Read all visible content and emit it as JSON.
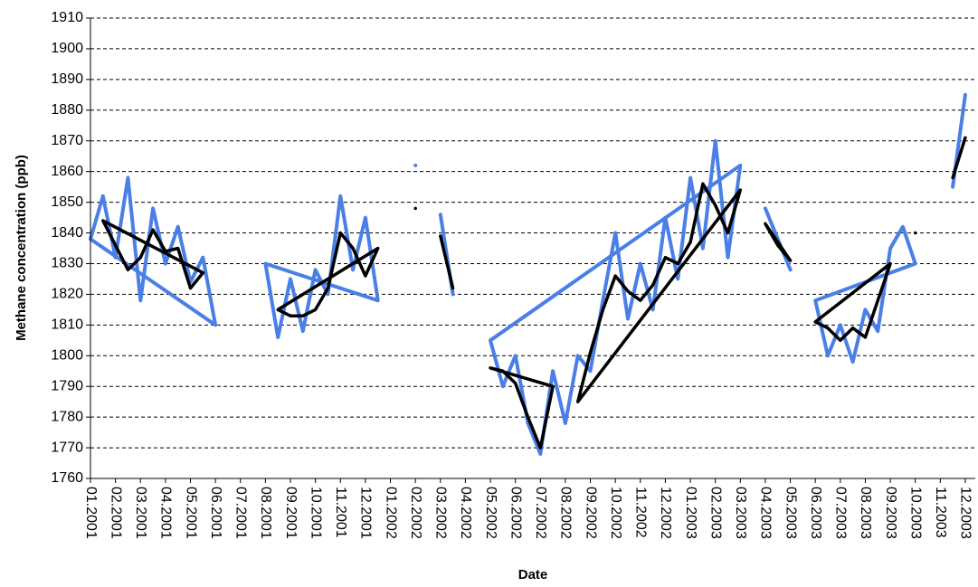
{
  "chart_data": {
    "type": "line",
    "xlabel": "Date",
    "ylabel": "Methane concentration (ppb)",
    "xlim": [
      0,
      35.4
    ],
    "ylim": [
      1760,
      1910
    ],
    "xticks": [
      {
        "value": 0,
        "label": "01.2001"
      },
      {
        "value": 1,
        "label": "02.2001"
      },
      {
        "value": 2,
        "label": "03.2001"
      },
      {
        "value": 3,
        "label": "04.2001"
      },
      {
        "value": 4,
        "label": "05.2001"
      },
      {
        "value": 5,
        "label": "06.2001"
      },
      {
        "value": 6,
        "label": "07.2001"
      },
      {
        "value": 7,
        "label": "08.2001"
      },
      {
        "value": 8,
        "label": "09.2001"
      },
      {
        "value": 9,
        "label": "10.2001"
      },
      {
        "value": 10,
        "label": "11.2001"
      },
      {
        "value": 11,
        "label": "12.2001"
      },
      {
        "value": 12,
        "label": "01.2002"
      },
      {
        "value": 13,
        "label": "02.2002"
      },
      {
        "value": 14,
        "label": "03.2002"
      },
      {
        "value": 15,
        "label": "04.2002"
      },
      {
        "value": 16,
        "label": "05.2002"
      },
      {
        "value": 17,
        "label": "06.2002"
      },
      {
        "value": 18,
        "label": "07.2002"
      },
      {
        "value": 19,
        "label": "08.2002"
      },
      {
        "value": 20,
        "label": "09.2002"
      },
      {
        "value": 21,
        "label": "10.2002"
      },
      {
        "value": 22,
        "label": "11.2002"
      },
      {
        "value": 23,
        "label": "12.2002"
      },
      {
        "value": 24,
        "label": "01.2003"
      },
      {
        "value": 25,
        "label": "02.2003"
      },
      {
        "value": 26,
        "label": "03.2003"
      },
      {
        "value": 27,
        "label": "04.2003"
      },
      {
        "value": 28,
        "label": "05.2003"
      },
      {
        "value": 29,
        "label": "06.2003"
      },
      {
        "value": 30,
        "label": "07.2003"
      },
      {
        "value": 31,
        "label": "08.2003"
      },
      {
        "value": 32,
        "label": "09.2003"
      },
      {
        "value": 33,
        "label": "10.2003"
      },
      {
        "value": 34,
        "label": "11.2003"
      },
      {
        "value": 35,
        "label": "12.2003"
      }
    ],
    "yticks": [
      1760,
      1770,
      1780,
      1790,
      1800,
      1810,
      1820,
      1830,
      1840,
      1850,
      1860,
      1870,
      1880,
      1890,
      1900,
      1910
    ],
    "grid": true,
    "x": [
      0,
      0.5,
      1,
      1.5,
      2,
      2.5,
      3,
      3.5,
      4,
      4.5,
      5,
      5.5,
      6,
      6.5,
      7,
      7.5,
      8,
      8.5,
      9,
      9.5,
      10,
      10.5,
      11,
      11.5,
      12,
      12.5,
      13,
      13.5,
      14,
      14.5,
      15,
      15.5,
      16,
      16.5,
      17,
      17.5,
      18,
      18.5,
      19,
      19.5,
      20,
      20.5,
      21,
      21.5,
      22,
      22.5,
      23,
      23.5,
      24,
      24.5,
      25,
      25.5,
      26,
      26.5,
      27,
      27.5,
      28,
      28.5,
      29,
      29.5,
      30,
      30.5,
      31,
      31.5,
      32,
      32.5,
      33,
      33.5,
      34,
      34.5,
      35
    ],
    "series": [
      {
        "color": "#4a7fe6",
        "width": 4,
        "values": [
          1838,
          1852,
          1832,
          1858,
          1818,
          1848,
          1830,
          1842,
          1824,
          1832,
          1810,
          null,
          null,
          null,
          1830,
          1806,
          1825,
          1808,
          1828,
          1820,
          1852,
          1828,
          1845,
          1818,
          null,
          null,
          1862,
          null,
          1846,
          1820,
          null,
          null,
          1805,
          1790,
          1800,
          1778,
          1768,
          1795,
          1778,
          1800,
          1795,
          1818,
          1840,
          1812,
          1830,
          1815,
          1845,
          1825,
          1858,
          1835,
          1870,
          1832,
          1862,
          null,
          1848,
          1838,
          1828,
          null,
          1818,
          1800,
          1810,
          1798,
          1815,
          1808,
          1835,
          1842,
          1830,
          null,
          null,
          1855,
          1885
        ]
      },
      {
        "color": "#000000",
        "width": 3.5,
        "values": [
          null,
          1844,
          1836,
          1828,
          1832,
          1841,
          1834,
          1835,
          1822,
          1827,
          null,
          null,
          null,
          null,
          null,
          1815,
          1813,
          1813,
          1815,
          1822,
          1840,
          1835,
          1826,
          1835,
          null,
          null,
          1848,
          null,
          1839,
          1822,
          null,
          null,
          1796,
          1795,
          1791,
          1780,
          1770,
          1790,
          null,
          1785,
          1801,
          1815,
          1826,
          1821,
          1818,
          1823,
          1832,
          1830,
          1837,
          1856,
          1849,
          1840,
          1854,
          null,
          1843,
          1836,
          1831,
          null,
          1811,
          1809,
          1805,
          1809,
          1806,
          1818,
          1830,
          null,
          1840,
          null,
          null,
          1858,
          1871
        ]
      }
    ]
  }
}
